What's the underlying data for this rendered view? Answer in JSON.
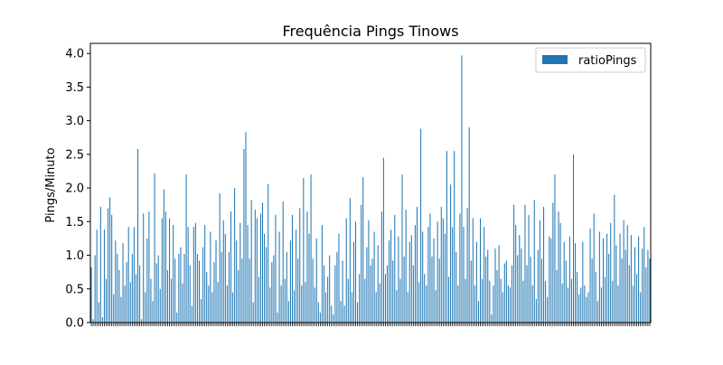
{
  "chart_data": {
    "type": "bar",
    "title": "Frequência Pings Tinows",
    "xlabel": "",
    "ylabel": "Pings/Minuto",
    "ylim": [
      0,
      4.15
    ],
    "yticks": [
      "0.0",
      "0.5",
      "1.0",
      "1.5",
      "2.0",
      "2.5",
      "3.0",
      "3.5",
      "4.0"
    ],
    "grid": false,
    "legend_position": "upper right",
    "series": [
      {
        "name": "ratioPings",
        "color": "#1f77b4",
        "values": [
          0.82,
          0.05,
          1.0,
          1.38,
          0.3,
          1.72,
          0.08,
          1.38,
          0.65,
          1.7,
          1.86,
          1.6,
          0.42,
          1.22,
          1.02,
          0.78,
          0.38,
          1.18,
          0.55,
          0.9,
          1.42,
          0.6,
          1.02,
          1.42,
          0.72,
          2.58,
          0.85,
          0.05,
          1.62,
          0.45,
          1.25,
          1.65,
          0.65,
          0.32,
          2.22,
          0.88,
          1.0,
          0.5,
          1.55,
          1.98,
          1.65,
          0.78,
          1.55,
          0.65,
          1.45,
          0.95,
          0.15,
          1.02,
          1.12,
          0.58,
          1.02,
          2.2,
          1.42,
          0.85,
          0.25,
          1.42,
          1.48,
          1.02,
          0.92,
          0.35,
          1.12,
          1.45,
          0.75,
          0.55,
          1.35,
          0.45,
          0.9,
          1.22,
          0.6,
          1.92,
          1.05,
          1.52,
          1.32,
          0.55,
          1.05,
          1.65,
          0.45,
          2.0,
          1.22,
          0.78,
          1.48,
          0.95,
          2.58,
          2.83,
          1.45,
          0.95,
          1.82,
          0.3,
          1.68,
          1.55,
          0.68,
          1.62,
          1.78,
          1.32,
          1.12,
          2.06,
          0.52,
          0.9,
          1.0,
          1.6,
          0.15,
          1.35,
          0.55,
          1.8,
          0.65,
          1.05,
          0.32,
          1.22,
          1.6,
          0.48,
          1.38,
          0.95,
          1.7,
          0.55,
          2.15,
          0.6,
          1.65,
          1.32,
          2.2,
          0.95,
          0.52,
          1.25,
          0.3,
          0.15,
          1.45,
          0.85,
          0.45,
          0.68,
          1.0,
          0.25,
          0.12,
          0.85,
          1.05,
          1.32,
          0.32,
          0.92,
          0.25,
          1.55,
          0.65,
          1.85,
          0.45,
          1.2,
          1.5,
          0.3,
          0.72,
          1.75,
          2.16,
          0.65,
          1.12,
          1.52,
          0.85,
          0.95,
          1.35,
          0.45,
          1.15,
          0.58,
          1.65,
          2.45,
          0.72,
          0.85,
          1.22,
          1.38,
          0.92,
          1.6,
          0.48,
          1.28,
          0.65,
          2.2,
          0.98,
          1.68,
          0.45,
          1.2,
          1.3,
          0.85,
          1.45,
          1.72,
          0.6,
          2.88,
          1.35,
          0.72,
          0.55,
          1.42,
          1.62,
          0.98,
          1.25,
          0.48,
          1.5,
          0.95,
          1.72,
          1.55,
          1.32,
          2.55,
          0.68,
          2.05,
          1.42,
          2.55,
          1.05,
          0.55,
          1.62,
          3.97,
          1.42,
          0.65,
          1.7,
          2.9,
          0.92,
          1.55,
          0.55,
          1.2,
          0.32,
          1.55,
          0.65,
          1.42,
          0.98,
          1.08,
          0.62,
          0.12,
          0.55,
          1.1,
          0.78,
          1.15,
          0.65,
          0.45,
          0.88,
          0.92,
          0.55,
          0.52,
          0.85,
          1.75,
          1.45,
          1.0,
          1.3,
          1.1,
          0.62,
          1.75,
          0.85,
          1.6,
          0.98,
          0.55,
          1.82,
          0.35,
          1.08,
          1.52,
          0.95,
          1.72,
          0.62,
          0.38,
          1.28,
          1.25,
          1.78,
          2.2,
          0.78,
          1.65,
          1.48,
          0.58,
          1.2,
          0.92,
          0.52,
          1.28,
          0.65,
          2.5,
          1.18,
          0.75,
          0.42,
          0.52,
          1.2,
          0.55,
          0.38,
          0.45,
          1.4,
          0.95,
          1.62,
          0.75,
          0.32,
          1.35,
          0.52,
          1.25,
          0.68,
          1.32,
          1.02,
          1.48,
          0.62,
          1.9,
          1.15,
          0.55,
          1.32,
          0.95,
          1.52,
          1.08,
          1.45,
          0.85,
          1.3,
          0.55,
          1.12,
          0.72,
          1.28,
          0.45,
          1.1,
          1.42,
          0.82,
          1.08,
          0.95
        ]
      }
    ]
  }
}
